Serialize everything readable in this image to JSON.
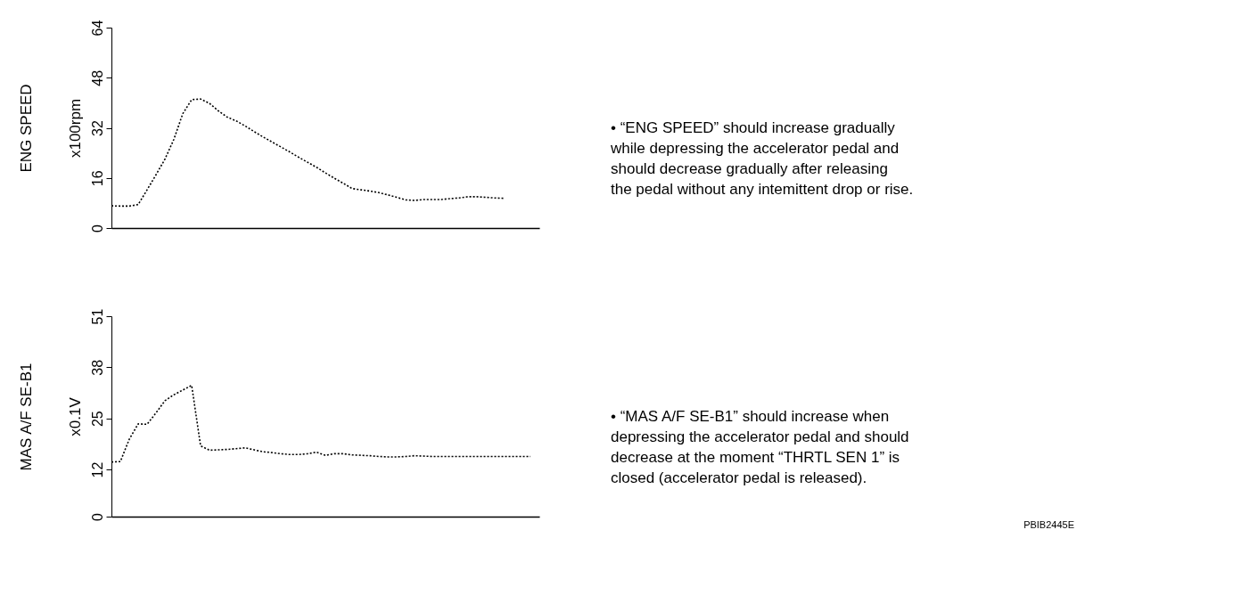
{
  "chart_data": [
    {
      "type": "line",
      "ylabel": "ENG SPEED",
      "categories": [
        null,
        null,
        null,
        null,
        null,
        null,
        null,
        null,
        null,
        null,
        null,
        null,
        null,
        null,
        null,
        null,
        null,
        null,
        null,
        null,
        null,
        null,
        null,
        null,
        null,
        null,
        null,
        null,
        null,
        null,
        null,
        null,
        null,
        null,
        null,
        null,
        null,
        null,
        null,
        null,
        null,
        null,
        null,
        null,
        null,
        null,
        null,
        null,
        null
      ],
      "series": [
        {
          "color": "#000000",
          "values": [
            7.1,
            7.0,
            7.0,
            7.5,
            12.2,
            17,
            22,
            28.3,
            36.5,
            41,
            41.2,
            39.8,
            37.4,
            35.4,
            34.2,
            32.6,
            30.8,
            29.1,
            27.5,
            25.9,
            24.3,
            22.6,
            21.0,
            19.4,
            17.6,
            15.9,
            14.3,
            12.6,
            12.2,
            11.8,
            11.3,
            10.6,
            9.8,
            9.0,
            8.8,
            9.1,
            9.1,
            9.1,
            9.4,
            9.6,
            10.0,
            10.0,
            9.8,
            9.6,
            9.5,
            null,
            null,
            null,
            null
          ]
        }
      ],
      "ylim": [
        0,
        64
      ],
      "yticks": [
        0,
        16,
        32,
        48,
        64
      ],
      "grid": false,
      "tick_labels": "y",
      "line_style": "dotted",
      "annotations": [
        "x100rpm",
        "• “ENG SPEED” should increase gradually\n  while depressing the accelerator pedal and\n  should decrease gradually after releasing\n  the pedal without any intemittent drop or rise."
      ]
    },
    {
      "type": "line",
      "ylabel": "MAS A/F SE-B1",
      "categories": [
        null,
        null,
        null,
        null,
        null,
        null,
        null,
        null,
        null,
        null,
        null,
        null,
        null,
        null,
        null,
        null,
        null,
        null,
        null,
        null,
        null,
        null,
        null,
        null,
        null,
        null,
        null,
        null,
        null,
        null,
        null,
        null,
        null,
        null,
        null,
        null,
        null,
        null,
        null,
        null,
        null,
        null,
        null,
        null,
        null,
        null,
        null,
        null,
        null
      ],
      "series": [
        {
          "color": "#000000",
          "values": [
            13.9,
            14.0,
            19.7,
            23.6,
            23.5,
            26.4,
            29.5,
            31.0,
            32.2,
            33.4,
            18.0,
            16.9,
            17.0,
            17.1,
            17.3,
            17.5,
            17.0,
            16.5,
            16.3,
            16.0,
            15.8,
            15.8,
            16.0,
            16.4,
            15.6,
            16.0,
            16.0,
            15.7,
            15.6,
            15.5,
            15.3,
            15.2,
            15.2,
            15.3,
            15.5,
            15.4,
            15.3,
            15.3,
            15.3,
            15.3,
            15.3,
            15.3,
            15.3,
            15.3,
            15.3,
            15.3,
            15.3,
            15.3,
            null
          ]
        }
      ],
      "ylim": [
        0,
        51
      ],
      "yticks": [
        0,
        12,
        25,
        38,
        51
      ],
      "grid": false,
      "tick_labels": "y",
      "line_style": "dotted",
      "annotations": [
        "x0.1V",
        "• “MAS A/F SE-B1” should increase when\n  depressing the accelerator pedal and  should\n  decrease at the moment “THRTL SEN 1” is\n  closed (accelerator pedal is released).",
        "PBIB2445E"
      ]
    }
  ]
}
